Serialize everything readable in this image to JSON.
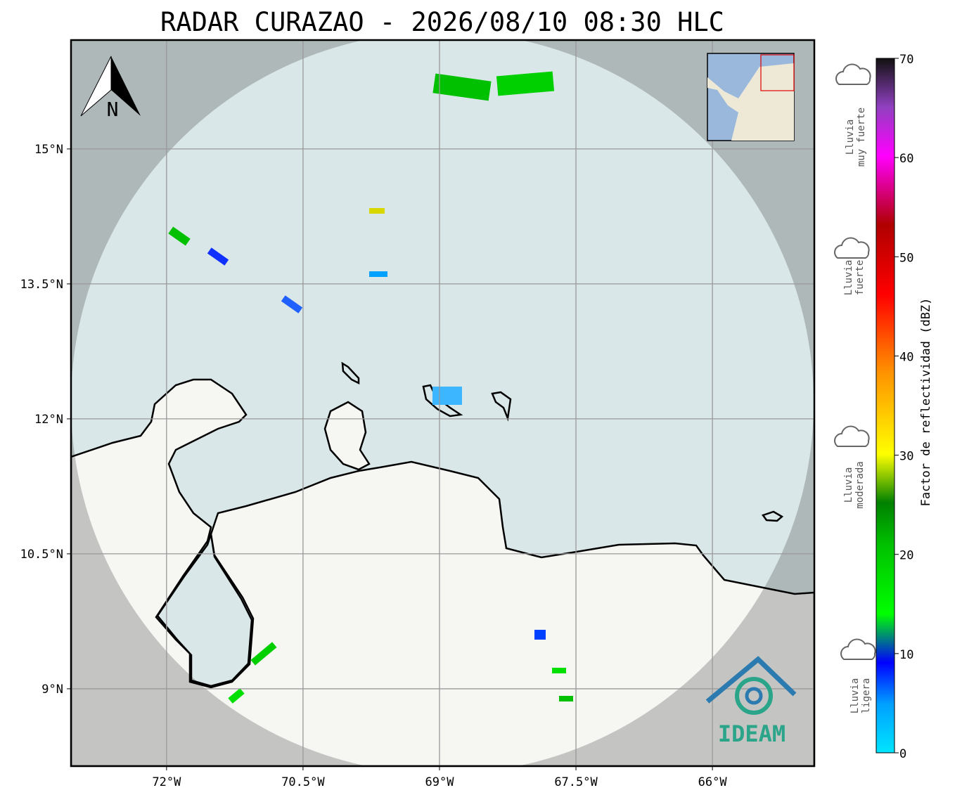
{
  "title": "RADAR CURAZAO - 2026/08/10 08:30 HLC",
  "map": {
    "xlim": [
      -73.05,
      -64.88
    ],
    "ylim": [
      8.14,
      16.21
    ],
    "xticks": [
      {
        "value": -72,
        "label": "72°W"
      },
      {
        "value": -70.5,
        "label": "70.5°W"
      },
      {
        "value": -69,
        "label": "69°W"
      },
      {
        "value": -67.5,
        "label": "67.5°W"
      },
      {
        "value": -66,
        "label": "66°W"
      }
    ],
    "yticks": [
      {
        "value": 15,
        "label": "15°N"
      },
      {
        "value": 13.5,
        "label": "13.5°N"
      },
      {
        "value": 12,
        "label": "12°N"
      },
      {
        "value": 10.5,
        "label": "10.5°N"
      },
      {
        "value": 9,
        "label": "9°N"
      }
    ],
    "grid": true
  },
  "north_label": "N",
  "logo": "IDEAM",
  "colorbar": {
    "label": "Factor de reflectividad (dBZ)",
    "lim": [
      0,
      70
    ],
    "ticks": [
      0,
      10,
      20,
      30,
      40,
      50,
      60,
      70
    ]
  },
  "rain_legend": [
    [
      "Lluvia",
      "muy fuerte"
    ],
    [
      "Lluvia",
      "fuerte"
    ],
    [
      "Lluvia",
      "moderada"
    ],
    [
      "Lluvia",
      "ligera"
    ]
  ]
}
